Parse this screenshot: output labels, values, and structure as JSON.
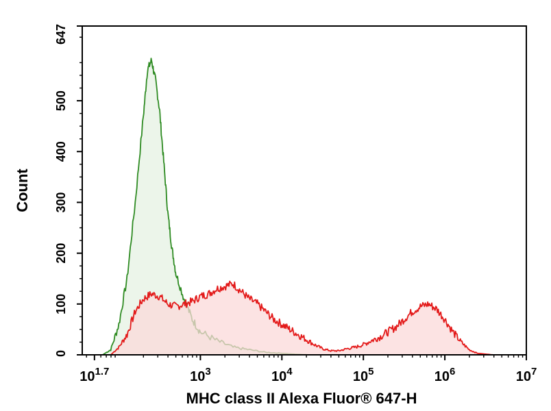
{
  "chart_data": {
    "type": "area",
    "title": "",
    "xlabel": "MHC class II Alexa Fluor® 647-H",
    "ylabel": "Count",
    "x_scale": "log",
    "xlim": [
      1.55,
      7.0
    ],
    "ylim": [
      0,
      647
    ],
    "grid": false,
    "legend": "none",
    "x_ticks": [
      {
        "value": 1.7,
        "base": "10",
        "exp": "1.7"
      },
      {
        "value": 3,
        "base": "10",
        "exp": "3"
      },
      {
        "value": 4,
        "base": "10",
        "exp": "4"
      },
      {
        "value": 5,
        "base": "10",
        "exp": "5"
      },
      {
        "value": 6,
        "base": "10",
        "exp": "6"
      },
      {
        "value": 7,
        "base": "10",
        "exp": "7"
      }
    ],
    "y_ticks": [
      {
        "value": 0,
        "label": "0"
      },
      {
        "value": 100,
        "label": "100"
      },
      {
        "value": 200,
        "label": "200"
      },
      {
        "value": 300,
        "label": "300"
      },
      {
        "value": 400,
        "label": "400"
      },
      {
        "value": 500,
        "label": "500"
      },
      {
        "value": 647,
        "label": "647"
      }
    ],
    "series": [
      {
        "color": "#2e8b22",
        "fill": "#e6f2e3",
        "x": [
          1.8,
          1.9,
          2.0,
          2.1,
          2.2,
          2.3,
          2.35,
          2.4,
          2.45,
          2.5,
          2.55,
          2.6,
          2.65,
          2.7,
          2.8,
          2.9,
          3.0,
          3.2,
          3.4,
          3.6,
          3.8,
          4.0,
          4.2,
          4.35
        ],
        "y": [
          0,
          10,
          60,
          150,
          300,
          470,
          560,
          580,
          540,
          480,
          380,
          280,
          210,
          160,
          110,
          70,
          45,
          28,
          15,
          10,
          5,
          3,
          1,
          0
        ]
      },
      {
        "color": "#e31a1a",
        "fill": "#fbd9d9",
        "x": [
          1.9,
          2.0,
          2.1,
          2.2,
          2.3,
          2.4,
          2.5,
          2.6,
          2.7,
          2.8,
          2.9,
          3.0,
          3.1,
          3.2,
          3.3,
          3.4,
          3.5,
          3.6,
          3.7,
          3.8,
          3.9,
          4.0,
          4.1,
          4.2,
          4.3,
          4.4,
          4.5,
          4.6,
          4.7,
          4.8,
          4.9,
          5.0,
          5.1,
          5.2,
          5.3,
          5.4,
          5.5,
          5.6,
          5.7,
          5.8,
          5.9,
          6.0,
          6.1,
          6.2,
          6.3,
          6.4,
          6.6
        ],
        "y": [
          0,
          15,
          40,
          85,
          110,
          120,
          115,
          100,
          95,
          100,
          105,
          115,
          120,
          130,
          135,
          140,
          125,
          110,
          100,
          85,
          70,
          60,
          50,
          40,
          30,
          20,
          12,
          8,
          8,
          12,
          15,
          20,
          28,
          35,
          45,
          55,
          70,
          85,
          95,
          100,
          90,
          70,
          45,
          25,
          10,
          3,
          0
        ]
      }
    ]
  }
}
